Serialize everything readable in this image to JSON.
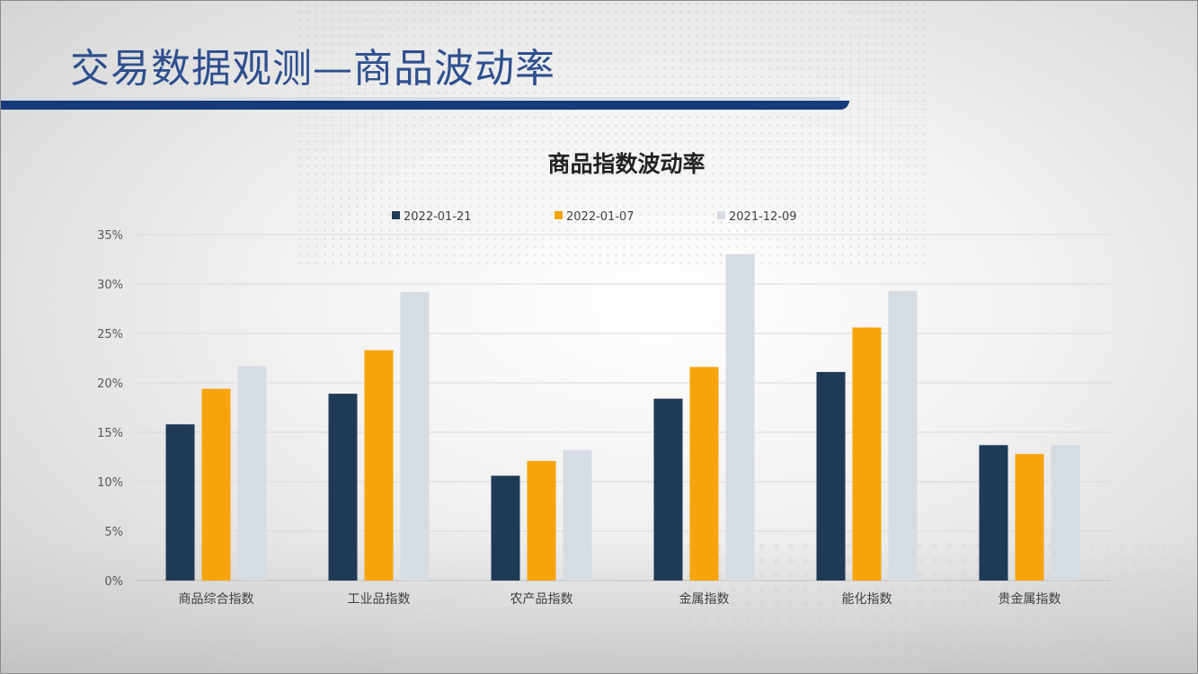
{
  "slide": {
    "title": "交易数据观测—商品波动率"
  },
  "colors": {
    "header_bar": "#163a7a",
    "series": [
      "#1f3a55",
      "#f7a30c",
      "#d6dce4"
    ]
  },
  "chart_data": {
    "type": "bar",
    "title": "商品指数波动率",
    "xlabel": "",
    "ylabel": "",
    "categories": [
      "商品综合指数",
      "工业品指数",
      "农产品指数",
      "金属指数",
      "能化指数",
      "贵金属指数"
    ],
    "series": [
      {
        "name": "2022-01-21",
        "values": [
          15.8,
          18.9,
          10.6,
          18.4,
          21.1,
          13.7
        ]
      },
      {
        "name": "2022-01-07",
        "values": [
          19.4,
          23.3,
          12.1,
          21.6,
          25.6,
          12.8
        ]
      },
      {
        "name": "2021-12-09",
        "values": [
          21.7,
          29.2,
          13.2,
          33.0,
          29.3,
          13.7
        ]
      }
    ],
    "ylim": [
      0,
      35
    ],
    "yticks": [
      0,
      5,
      10,
      15,
      20,
      25,
      30,
      35
    ],
    "ytick_labels": [
      "0%",
      "5%",
      "10%",
      "15%",
      "20%",
      "25%",
      "30%",
      "35%"
    ],
    "grid": true,
    "legend_position": "top"
  }
}
